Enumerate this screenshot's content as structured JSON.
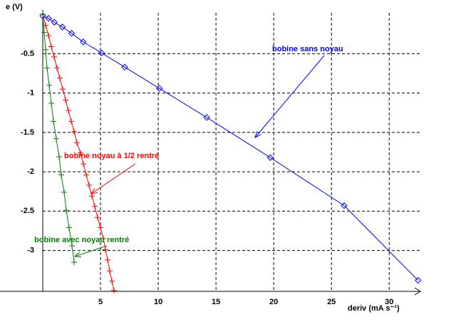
{
  "chart_data": {
    "type": "line",
    "y_label": "e (V)",
    "x_label": "deriv (mA s⁻¹)",
    "xlim": [
      0,
      32.7
    ],
    "ylim": [
      -3.52,
      0.02
    ],
    "xticks": [
      5,
      10,
      15,
      20,
      25,
      30
    ],
    "yticks": [
      -0.5,
      -1,
      -1.5,
      -2,
      -2.5,
      -3
    ],
    "grid": true,
    "series": [
      {
        "name": "bobine sans noyau",
        "color": "#0000ff",
        "marker": "diamond",
        "x": [
          0,
          0.5,
          1.0,
          1.7,
          2.5,
          3.5,
          5.1,
          7.1,
          10.1,
          14.2,
          19.7,
          26.1,
          32.5
        ],
        "values": [
          -0.02,
          -0.05,
          -0.1,
          -0.16,
          -0.24,
          -0.35,
          -0.49,
          -0.67,
          -0.94,
          -1.31,
          -1.82,
          -2.43,
          -3.38
        ]
      },
      {
        "name": "bobine noyau à 1/2 rentré",
        "color": "#ff0000",
        "marker": "plus",
        "x": [
          0,
          0.25,
          0.5,
          0.74,
          0.99,
          1.23,
          1.48,
          1.73,
          1.98,
          2.22,
          2.47,
          2.72,
          2.96,
          3.27,
          3.52,
          3.77,
          4.01,
          4.26,
          4.51,
          4.75,
          5,
          5.25,
          5.43,
          5.62,
          5.8,
          5.99,
          6.17
        ],
        "values": [
          0,
          -0.14,
          -0.27,
          -0.41,
          -0.54,
          -0.68,
          -0.81,
          -0.95,
          -1.09,
          -1.22,
          -1.36,
          -1.49,
          -1.63,
          -1.76,
          -1.9,
          -2.04,
          -2.17,
          -2.31,
          -2.44,
          -2.58,
          -2.71,
          -2.85,
          -2.99,
          -3.12,
          -3.26,
          -3.39,
          -3.51
        ]
      },
      {
        "name": "bobine avec noyau rentré",
        "color": "#008000",
        "marker": "plus",
        "x": [
          0,
          0.12,
          0.25,
          0.37,
          0.56,
          0.74,
          0.93,
          1.17,
          1.42,
          1.6,
          1.85,
          2.04,
          2.28,
          2.53,
          2.72
        ],
        "values": [
          0,
          -0.23,
          -0.45,
          -0.68,
          -0.9,
          -1.13,
          -1.36,
          -1.58,
          -1.81,
          -2.04,
          -2.26,
          -2.49,
          -2.71,
          -2.94,
          -3.15
        ]
      }
    ]
  }
}
